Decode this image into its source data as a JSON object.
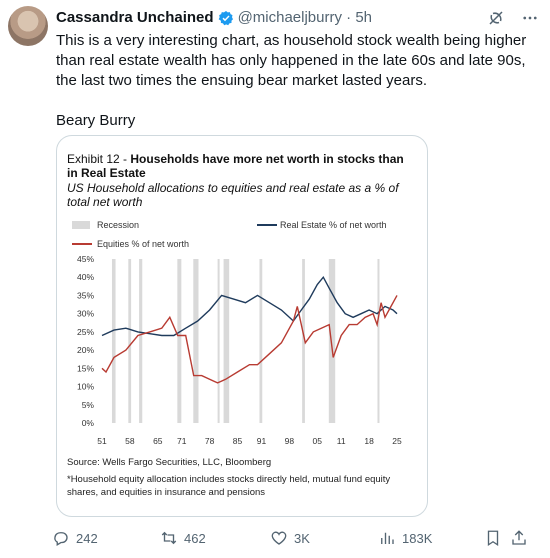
{
  "tweet": {
    "name": "Cassandra Unchained",
    "handle": "@michaeljburry",
    "time": "· 5h",
    "text": "This is a very interesting chart, as household stock wealth being higher than real estate wealth has only happened in the late 60s and late 90s, the last two times the ensuing bear market lasted years.\n\nBeary Burry"
  },
  "card": {
    "exhibit_prefix": "Exhibit 12 - ",
    "exhibit_title": "Households have more net worth in stocks than in Real Estate",
    "subtitle": "US Household allocations to equities and real estate as a % of total net worth",
    "source": "Source: Wells Fargo Securities, LLC, Bloomberg",
    "footnote": "*Household equity allocation includes stocks directly held, mutual fund equity shares, and equities in insurance and pensions"
  },
  "actions": {
    "replies": "242",
    "reposts": "462",
    "likes": "3K",
    "views": "183K"
  },
  "icons": [
    "avatar",
    "verified-badge-icon",
    "grok-icon",
    "more-icon",
    "reply-icon",
    "repost-icon",
    "like-icon",
    "views-icon",
    "bookmark-icon",
    "share-icon"
  ],
  "chart_data": {
    "type": "line",
    "legend": [
      "Recession",
      "Real Estate % of net worth",
      "Equities % of net worth"
    ],
    "colors": {
      "real_estate": "#1f3b5c",
      "equities": "#b83b32",
      "recession": "#d9d9d9"
    },
    "x_ticks": [
      "51",
      "58",
      "65",
      "71",
      "78",
      "85",
      "91",
      "98",
      "05",
      "11",
      "18",
      "25"
    ],
    "y_ticks": [
      "45%",
      "40%",
      "35%",
      "30%",
      "25%",
      "20%",
      "15%",
      "10%",
      "5%",
      "0%"
    ],
    "ylim": [
      0,
      45
    ],
    "xlim": [
      1951,
      2025
    ],
    "recessions": [
      [
        1953.5,
        1954.4
      ],
      [
        1957.6,
        1958.3
      ],
      [
        1960.3,
        1961.1
      ],
      [
        1969.9,
        1970.9
      ],
      [
        1973.9,
        1975.2
      ],
      [
        1980.0,
        1980.5
      ],
      [
        1981.5,
        1982.9
      ],
      [
        1990.5,
        1991.2
      ],
      [
        2001.2,
        2001.9
      ],
      [
        2007.9,
        2009.5
      ],
      [
        2020.1,
        2020.4
      ]
    ],
    "series": [
      {
        "name": "Real Estate % of net worth",
        "x": [
          1951,
          1954,
          1957,
          1960,
          1963,
          1966,
          1969,
          1972,
          1975,
          1978,
          1981,
          1984,
          1987,
          1990,
          1993,
          1996,
          1999,
          2001,
          2003,
          2005,
          2006.5,
          2008,
          2010,
          2012,
          2014,
          2016,
          2018,
          2020,
          2022,
          2024,
          2025
        ],
        "y": [
          24,
          25.5,
          26,
          25,
          24.5,
          24,
          24,
          26,
          28,
          31,
          35,
          34,
          33,
          35,
          33,
          31,
          28,
          31,
          34,
          38,
          40,
          37,
          33,
          30,
          29,
          30,
          31,
          30,
          32,
          31,
          30
        ]
      },
      {
        "name": "Equities % of net worth",
        "x": [
          1951,
          1952,
          1954,
          1957,
          1960,
          1963,
          1966,
          1968,
          1970,
          1972,
          1974,
          1976,
          1978,
          1980,
          1982,
          1985,
          1988,
          1990,
          1993,
          1996,
          1999,
          2000,
          2002,
          2004,
          2006,
          2008,
          2009,
          2011,
          2013,
          2015,
          2017,
          2019,
          2020,
          2021,
          2022,
          2023,
          2025
        ],
        "y": [
          15,
          14,
          18,
          20,
          24,
          25,
          26,
          29,
          24,
          24,
          13,
          13,
          12,
          11,
          12,
          14,
          16,
          16,
          19,
          22,
          28,
          32,
          22,
          25,
          26,
          27,
          18,
          24,
          27,
          27,
          29,
          30,
          27,
          33,
          29,
          31,
          35
        ]
      }
    ]
  }
}
